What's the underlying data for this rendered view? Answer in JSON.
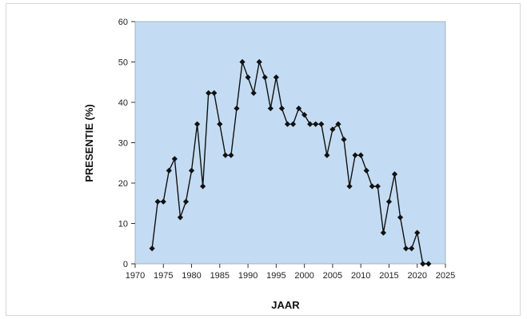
{
  "chart_data": {
    "type": "line",
    "title": "",
    "xlabel": "JAAR",
    "ylabel": "PRESENTIE  (%)",
    "xlim": [
      1970,
      2025
    ],
    "ylim": [
      0,
      60
    ],
    "x_ticks": [
      1970,
      1975,
      1980,
      1985,
      1990,
      1995,
      2000,
      2005,
      2010,
      2015,
      2020,
      2025
    ],
    "y_ticks": [
      0,
      10,
      20,
      30,
      40,
      50,
      60
    ],
    "x_tick_labels": [
      "1970",
      "1975",
      "1980",
      "1985",
      "1990",
      "1995",
      "2000",
      "2005",
      "2010",
      "2015",
      "2020",
      "2025"
    ],
    "y_tick_labels": [
      "0",
      "10",
      "20",
      "30",
      "40",
      "50",
      "60"
    ],
    "grid": false,
    "legend": "none",
    "colors": {
      "plot_background": "#c3dcf3",
      "line": "#111111",
      "marker": "#111111"
    },
    "series": [
      {
        "x": [
          1973,
          1974,
          1975,
          1976,
          1977,
          1978,
          1979,
          1980,
          1981,
          1982,
          1983,
          1984,
          1985,
          1986,
          1987,
          1988,
          1989,
          1990,
          1991,
          1992,
          1993,
          1994,
          1995,
          1996,
          1997,
          1998,
          1999,
          2000,
          2001,
          2002,
          2003,
          2004,
          2005,
          2006,
          2007,
          2008,
          2009,
          2010,
          2011,
          2012,
          2013,
          2014,
          2015,
          2016,
          2017,
          2018,
          2019,
          2020,
          2021,
          2022
        ],
        "y": [
          3.8,
          15.4,
          15.4,
          23.1,
          26.0,
          11.5,
          15.4,
          23.1,
          34.6,
          19.2,
          42.3,
          42.3,
          34.6,
          26.9,
          26.9,
          38.5,
          50.0,
          46.2,
          42.3,
          50.0,
          46.2,
          38.5,
          46.2,
          38.5,
          34.6,
          34.6,
          38.5,
          36.9,
          34.6,
          34.6,
          34.6,
          26.9,
          33.3,
          34.6,
          30.8,
          19.2,
          26.9,
          26.9,
          23.1,
          19.2,
          19.2,
          7.7,
          15.4,
          22.2,
          11.5,
          3.8,
          3.8,
          7.7,
          0,
          0
        ]
      }
    ]
  }
}
